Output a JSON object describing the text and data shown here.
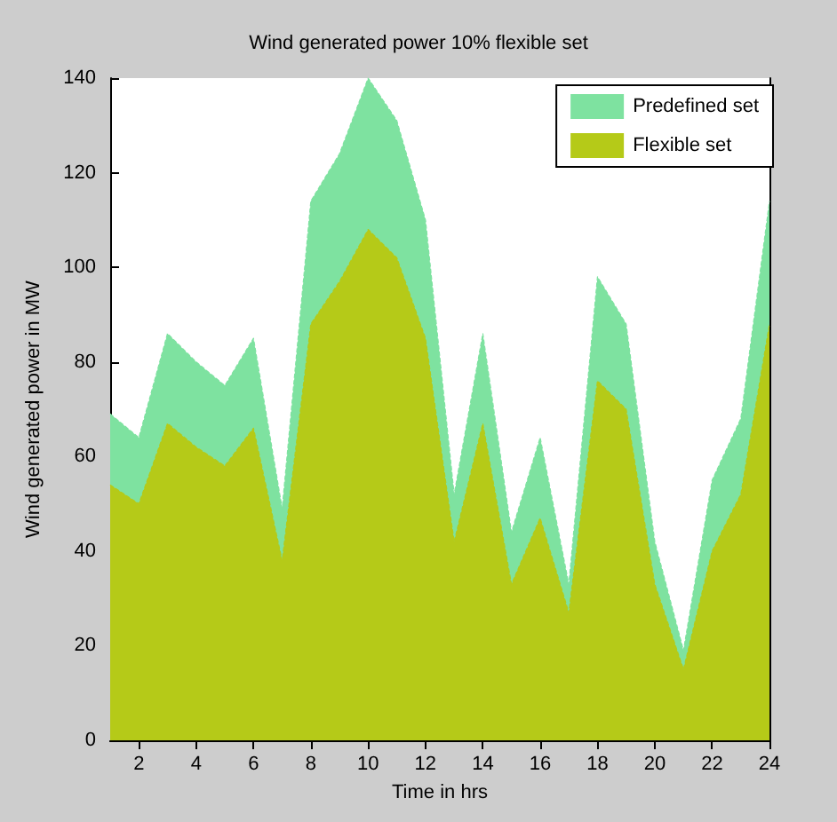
{
  "chart_data": {
    "type": "area",
    "title": "Wind generated power 10% flexible set",
    "xlabel": "Time in hrs",
    "ylabel": "Wind generated power in MW",
    "x": [
      1,
      2,
      3,
      4,
      5,
      6,
      7,
      8,
      9,
      10,
      11,
      12,
      13,
      14,
      15,
      16,
      17,
      18,
      19,
      20,
      21,
      22,
      23,
      24
    ],
    "series": [
      {
        "name": "Predefined set",
        "color": "#7ee2a0",
        "values": [
          69,
          64,
          86,
          80,
          75,
          85,
          49,
          114,
          124,
          140,
          131,
          110,
          52,
          86,
          44,
          64,
          33,
          98,
          88,
          42,
          19,
          55,
          68,
          114
        ]
      },
      {
        "name": "Flexible set",
        "color": "#b5ca18",
        "values": [
          54,
          50,
          67,
          62,
          58,
          66,
          38,
          88,
          97,
          108,
          102,
          85,
          42,
          67,
          33,
          47,
          27,
          76,
          70,
          33,
          15,
          40,
          52,
          88
        ]
      }
    ],
    "xlim": [
      1,
      24
    ],
    "xticks": [
      2,
      4,
      6,
      8,
      10,
      12,
      14,
      16,
      18,
      20,
      22,
      24
    ],
    "ylim": [
      0,
      140
    ],
    "yticks": [
      0,
      20,
      40,
      60,
      80,
      100,
      120,
      140
    ],
    "grid": false,
    "legend": "top right",
    "line_style": "dashed",
    "marker": "none"
  }
}
